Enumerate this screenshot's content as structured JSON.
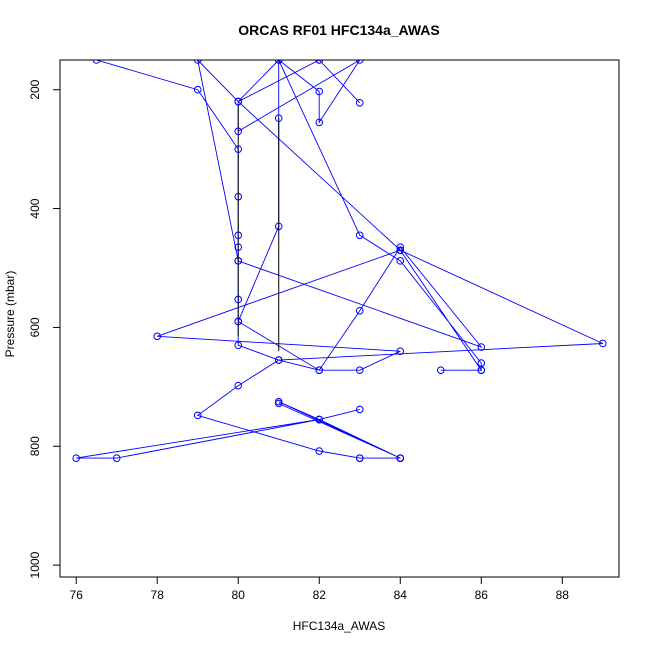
{
  "chart_data": {
    "type": "line",
    "title": "ORCAS RF01 HFC134a_AWAS",
    "xlabel": "HFC134a_AWAS",
    "ylabel": "Pressure (mbar)",
    "xlim": [
      75.6,
      89.4
    ],
    "ylim": [
      1020,
      150
    ],
    "y_reversed": true,
    "x_ticks": [
      76,
      78,
      80,
      82,
      84,
      86,
      88
    ],
    "y_ticks": [
      200,
      400,
      600,
      800,
      1000
    ],
    "colors": {
      "series": "#0000ff",
      "segment": "#000000"
    },
    "series": [
      {
        "points": [
          [
            76.5,
            150
          ],
          [
            79,
            200
          ],
          [
            80,
            300
          ],
          [
            80,
            380
          ],
          [
            80,
            445
          ],
          [
            80,
            465
          ],
          [
            80,
            488
          ],
          [
            80,
            553
          ],
          [
            80,
            590
          ],
          [
            80,
            630
          ],
          [
            81,
            655
          ],
          [
            82,
            672
          ],
          [
            83,
            672
          ],
          [
            84,
            640
          ],
          [
            78,
            615
          ],
          [
            84,
            470
          ],
          [
            86,
            672
          ],
          [
            85,
            672
          ],
          [
            86,
            672
          ],
          [
            86,
            660
          ],
          [
            84,
            488
          ],
          [
            83,
            445
          ],
          [
            81,
            150
          ],
          [
            81,
            248
          ],
          [
            81,
            430
          ],
          [
            80,
            590
          ],
          [
            82,
            672
          ],
          [
            83,
            572
          ],
          [
            84,
            465
          ],
          [
            86,
            633
          ],
          [
            80,
            488
          ],
          [
            79,
            150
          ],
          [
            80,
            220
          ],
          [
            84,
            470
          ],
          [
            89,
            627
          ],
          [
            81,
            655
          ],
          [
            80,
            698
          ],
          [
            79,
            748
          ],
          [
            82,
            808
          ],
          [
            83,
            820
          ],
          [
            84,
            820
          ],
          [
            83,
            820
          ],
          [
            84,
            820
          ],
          [
            81,
            725
          ],
          [
            82,
            755
          ],
          [
            83,
            738
          ],
          [
            82,
            755
          ],
          [
            84,
            820
          ],
          [
            82,
            755
          ],
          [
            77,
            820
          ],
          [
            76,
            820
          ],
          [
            82,
            755
          ],
          [
            84,
            820
          ],
          [
            81,
            728
          ]
        ]
      },
      {
        "points": [
          [
            80,
            220
          ],
          [
            81,
            150
          ],
          [
            82,
            203
          ],
          [
            82,
            255
          ],
          [
            83,
            150
          ],
          [
            80,
            270
          ],
          [
            80,
            220
          ],
          [
            82,
            150
          ],
          [
            83,
            222
          ],
          [
            82,
            150
          ]
        ]
      }
    ],
    "segments": [
      [
        [
          80,
          225
        ],
        [
          80,
          615
        ]
      ],
      [
        [
          81,
          248
        ],
        [
          81,
          640
        ]
      ]
    ]
  }
}
